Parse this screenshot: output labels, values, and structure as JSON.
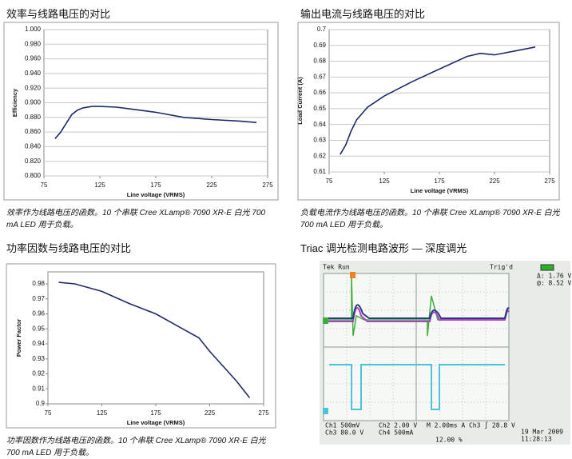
{
  "chart_data": [
    {
      "type": "line",
      "title": "效率与线路电压的对比",
      "caption": "效率作为线路电压的函数。10 个串联 Cree XLamp® 7090 XR-E 白光 700 mA LED 用于负载。",
      "xlabel": "Line voltage (VRMS)",
      "ylabel": "Efficiency",
      "color": "#1f2a6b",
      "grid": true,
      "x": [
        85,
        90,
        95,
        100,
        105,
        110,
        118,
        125,
        140,
        150,
        175,
        200,
        225,
        250,
        265
      ],
      "values": [
        0.851,
        0.86,
        0.872,
        0.884,
        0.89,
        0.893,
        0.895,
        0.895,
        0.894,
        0.892,
        0.887,
        0.88,
        0.877,
        0.875,
        0.873
      ],
      "xlim": [
        75,
        275
      ],
      "xticks": [
        75,
        125,
        175,
        225,
        275
      ],
      "ylim": [
        0.8,
        1.0
      ],
      "yticks": [
        {
          "value": 0.8,
          "label": "0.800"
        },
        {
          "value": 0.82,
          "label": "0.820"
        },
        {
          "value": 0.84,
          "label": "0.840"
        },
        {
          "value": 0.86,
          "label": "0.860"
        },
        {
          "value": 0.88,
          "label": "0.880"
        },
        {
          "value": 0.9,
          "label": "0.900"
        },
        {
          "value": 0.92,
          "label": "0.920"
        },
        {
          "value": 0.94,
          "label": "0.940"
        },
        {
          "value": 0.96,
          "label": "0.960"
        },
        {
          "value": 0.98,
          "label": "0.980"
        },
        {
          "value": 1.0,
          "label": "1.000"
        }
      ]
    },
    {
      "type": "line",
      "title": "输出电流与线路电压的对比",
      "caption": "负载电流作为线路电压的函数。10 个串联 Cree XLamp® 7090 XR-E 白光 700 mA LED 用于负载。",
      "xlabel": "Line voltage (VRMS)",
      "ylabel": "Load Current (A)",
      "color": "#1f2a6b",
      "grid": true,
      "x": [
        85,
        90,
        95,
        100,
        110,
        125,
        150,
        175,
        200,
        212,
        225,
        240,
        262
      ],
      "values": [
        0.621,
        0.627,
        0.636,
        0.643,
        0.651,
        0.658,
        0.667,
        0.675,
        0.683,
        0.685,
        0.684,
        0.686,
        0.689
      ],
      "xlim": [
        75,
        275
      ],
      "xticks": [
        75,
        125,
        175,
        225,
        275
      ],
      "ylim": [
        0.61,
        0.7
      ],
      "yticks": [
        0.61,
        0.62,
        0.63,
        0.64,
        0.65,
        0.66,
        0.67,
        0.68,
        0.69,
        0.7
      ]
    },
    {
      "type": "line",
      "title": "功率因数与线路电压的对比",
      "caption": "功率因数作为线路电压的函数。10 个串联 Cree XLamp® 7090 XR-E 白光 700 mA LED 用于负载。",
      "xlabel": "Line voltage (VRMS)",
      "ylabel": "Power Factor",
      "color": "#1f2a6b",
      "grid": false,
      "x": [
        85,
        100,
        125,
        150,
        175,
        200,
        215,
        225,
        240,
        250,
        262
      ],
      "values": [
        0.981,
        0.98,
        0.975,
        0.967,
        0.96,
        0.95,
        0.944,
        0.935,
        0.923,
        0.915,
        0.904
      ],
      "xlim": [
        75,
        275
      ],
      "xticks": [
        75,
        125,
        175,
        225,
        275
      ],
      "ylim": [
        0.9,
        0.988
      ],
      "yticks": [
        0.9,
        0.91,
        0.92,
        0.93,
        0.94,
        0.95,
        0.96,
        0.97,
        0.98
      ]
    }
  ],
  "scope": {
    "title": "Triac 调光检测电路波形 — 深度调光",
    "status": "Tek Run",
    "trigger": "Trig'd",
    "delta": "Δ: 1.76 V",
    "at": "@: 8.52 V",
    "ch1": "Ch1  500mV",
    "ch2": "Ch2  2.00 V",
    "timebase": "M 2.00ms  A  Ch3 ∫ 28.8 V",
    "ch3": "Ch3  80.0 V",
    "ch4": "Ch4  500mA",
    "position": "12.00 %",
    "date": "19 Mar 2009",
    "time": "11:28:13"
  }
}
